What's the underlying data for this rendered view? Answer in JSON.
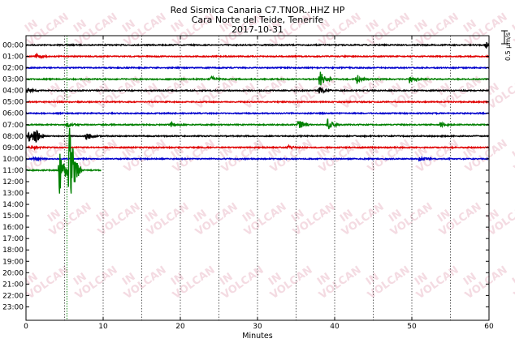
{
  "chart_data": {
    "type": "line",
    "title_lines": [
      "Red Sismica Canaria C7.TNOR..HHZ HP",
      "Cara Norte del Teide, Tenerife",
      "2017-10-31"
    ],
    "xlabel": "Minutes",
    "x_ticks": [
      "0",
      "10",
      "20",
      "30",
      "40",
      "50",
      "60"
    ],
    "xlim": [
      0,
      60
    ],
    "hour_labels": [
      "00:00",
      "01:00",
      "02:00",
      "03:00",
      "04:00",
      "05:00",
      "06:00",
      "07:00",
      "08:00",
      "09:00",
      "10:00",
      "11:00",
      "12:00",
      "13:00",
      "14:00",
      "15:00",
      "16:00",
      "17:00",
      "18:00",
      "19:00",
      "20:00",
      "21:00",
      "22:00",
      "23:00"
    ],
    "scale_label": "0.5 µm/s",
    "trace_colors": [
      "#000000",
      "#e00000",
      "#0000cc",
      "#008000"
    ],
    "grid": "vertical dotted every 5 minutes",
    "current_time_marker_minute": 5.3,
    "traces": [
      {
        "hour": "00:00",
        "color": "black",
        "end_minute": 60,
        "events": [
          {
            "minute": 59.5,
            "amp": 0.7
          }
        ]
      },
      {
        "hour": "01:00",
        "color": "red",
        "end_minute": 60,
        "events": [
          {
            "minute": 1.3,
            "amp": 0.6
          }
        ]
      },
      {
        "hour": "02:00",
        "color": "blue",
        "end_minute": 60,
        "events": []
      },
      {
        "hour": "03:00",
        "color": "green",
        "end_minute": 60,
        "events": [
          {
            "minute": 24.0,
            "amp": 0.5
          },
          {
            "minute": 38.0,
            "amp": 1.7
          },
          {
            "minute": 42.8,
            "amp": 0.9
          },
          {
            "minute": 49.7,
            "amp": 0.7
          }
        ]
      },
      {
        "hour": "04:00",
        "color": "black",
        "end_minute": 60,
        "events": [
          {
            "minute": 0.1,
            "amp": 0.5
          },
          {
            "minute": 38.0,
            "amp": 0.6
          }
        ]
      },
      {
        "hour": "05:00",
        "color": "red",
        "end_minute": 60,
        "events": []
      },
      {
        "hour": "06:00",
        "color": "blue",
        "end_minute": 60,
        "events": []
      },
      {
        "hour": "07:00",
        "color": "green",
        "end_minute": 60,
        "events": [
          {
            "minute": 5.3,
            "amp": 0.5
          },
          {
            "minute": 18.8,
            "amp": 0.4
          },
          {
            "minute": 35.3,
            "amp": 0.9
          },
          {
            "minute": 39.1,
            "amp": 1.0
          },
          {
            "minute": 53.7,
            "amp": 0.5
          }
        ]
      },
      {
        "hour": "08:00",
        "color": "black",
        "end_minute": 60,
        "events": [
          {
            "minute": 0.3,
            "amp": 1.2
          },
          {
            "minute": 1.0,
            "amp": 1.6
          },
          {
            "minute": 7.8,
            "amp": 0.7
          }
        ]
      },
      {
        "hour": "09:00",
        "color": "red",
        "end_minute": 60,
        "events": [
          {
            "minute": 0.5,
            "amp": 0.4
          },
          {
            "minute": 34.0,
            "amp": 0.3
          }
        ]
      },
      {
        "hour": "10:00",
        "color": "blue",
        "end_minute": 60,
        "events": [
          {
            "minute": 1.0,
            "amp": 0.4
          },
          {
            "minute": 51.0,
            "amp": 0.4
          }
        ]
      },
      {
        "hour": "11:00",
        "color": "green",
        "end_minute": 9.7,
        "events": [
          {
            "minute": 4.3,
            "amp": 4.6
          },
          {
            "minute": 5.6,
            "amp": 9.6
          }
        ]
      }
    ],
    "watermark_text": [
      "IN",
      "VOLCAN"
    ]
  }
}
